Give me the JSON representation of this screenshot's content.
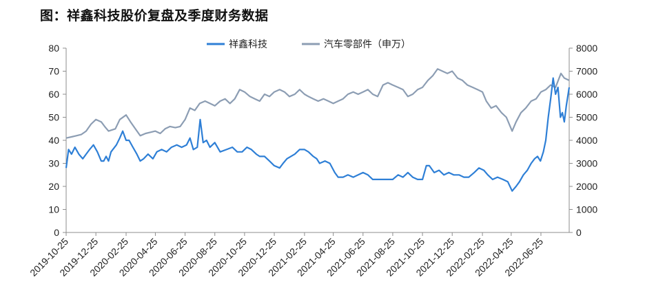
{
  "title": "图：祥鑫科技股价复盘及季度财务数据",
  "chart_data": {
    "type": "line",
    "title": "图：祥鑫科技股价复盘及季度财务数据",
    "xlabel": "",
    "ylabel": "",
    "y2label": "",
    "ylim": [
      0,
      80
    ],
    "y2lim": [
      0,
      8000
    ],
    "yticks": [
      0,
      10,
      20,
      30,
      40,
      50,
      60,
      70,
      80
    ],
    "y2ticks": [
      0,
      1000,
      2000,
      3000,
      4000,
      5000,
      6000,
      7000,
      8000
    ],
    "x_start": "2019-10-25",
    "x_end": "2022-08-22",
    "xticks": [
      "2019-10-25",
      "2019-12-25",
      "2020-02-25",
      "2020-04-25",
      "2020-06-25",
      "2020-08-25",
      "2020-10-25",
      "2020-12-25",
      "2021-02-25",
      "2021-04-25",
      "2021-06-25",
      "2021-08-25",
      "2021-10-25",
      "2021-12-25",
      "2022-02-25",
      "2022-04-25",
      "2022-06-25"
    ],
    "legend_position": "top-center",
    "series": [
      {
        "name": "祥鑫科技",
        "axis": "left",
        "color": "#2e7fd6",
        "points": [
          [
            "2019-10-25",
            28
          ],
          [
            "2019-10-30",
            36
          ],
          [
            "2019-11-05",
            34
          ],
          [
            "2019-11-12",
            37
          ],
          [
            "2019-11-20",
            34
          ],
          [
            "2019-11-28",
            32
          ],
          [
            "2019-12-05",
            34
          ],
          [
            "2019-12-12",
            36
          ],
          [
            "2019-12-20",
            38
          ],
          [
            "2019-12-28",
            35
          ],
          [
            "2020-01-05",
            31
          ],
          [
            "2020-01-10",
            31
          ],
          [
            "2020-01-15",
            33
          ],
          [
            "2020-01-20",
            31
          ],
          [
            "2020-01-25",
            35
          ],
          [
            "2020-02-05",
            38
          ],
          [
            "2020-02-12",
            41
          ],
          [
            "2020-02-18",
            44
          ],
          [
            "2020-02-25",
            40
          ],
          [
            "2020-03-02",
            40
          ],
          [
            "2020-03-10",
            37
          ],
          [
            "2020-03-18",
            34
          ],
          [
            "2020-03-25",
            31
          ],
          [
            "2020-04-01",
            32
          ],
          [
            "2020-04-10",
            34
          ],
          [
            "2020-04-20",
            32
          ],
          [
            "2020-04-28",
            35
          ],
          [
            "2020-05-08",
            36
          ],
          [
            "2020-05-18",
            35
          ],
          [
            "2020-05-28",
            37
          ],
          [
            "2020-06-08",
            38
          ],
          [
            "2020-06-18",
            37
          ],
          [
            "2020-06-28",
            38
          ],
          [
            "2020-07-05",
            41
          ],
          [
            "2020-07-12",
            36
          ],
          [
            "2020-07-20",
            37
          ],
          [
            "2020-07-26",
            49
          ],
          [
            "2020-08-01",
            39
          ],
          [
            "2020-08-08",
            40
          ],
          [
            "2020-08-15",
            37
          ],
          [
            "2020-08-25",
            39
          ],
          [
            "2020-09-05",
            35
          ],
          [
            "2020-09-18",
            36
          ],
          [
            "2020-09-30",
            37
          ],
          [
            "2020-10-10",
            35
          ],
          [
            "2020-10-20",
            35
          ],
          [
            "2020-10-30",
            37
          ],
          [
            "2020-11-08",
            36
          ],
          [
            "2020-11-18",
            34
          ],
          [
            "2020-11-25",
            33
          ],
          [
            "2020-12-05",
            33
          ],
          [
            "2020-12-15",
            31
          ],
          [
            "2020-12-25",
            29
          ],
          [
            "2021-01-05",
            28
          ],
          [
            "2021-01-12",
            30
          ],
          [
            "2021-01-20",
            32
          ],
          [
            "2021-01-28",
            33
          ],
          [
            "2021-02-05",
            34
          ],
          [
            "2021-02-15",
            36
          ],
          [
            "2021-02-25",
            36
          ],
          [
            "2021-03-05",
            35
          ],
          [
            "2021-03-15",
            33
          ],
          [
            "2021-03-22",
            32
          ],
          [
            "2021-03-28",
            30
          ],
          [
            "2021-04-08",
            31
          ],
          [
            "2021-04-18",
            30
          ],
          [
            "2021-04-28",
            26
          ],
          [
            "2021-05-05",
            24
          ],
          [
            "2021-05-15",
            24
          ],
          [
            "2021-05-25",
            25
          ],
          [
            "2021-06-05",
            24
          ],
          [
            "2021-06-15",
            25
          ],
          [
            "2021-06-25",
            26
          ],
          [
            "2021-07-05",
            25
          ],
          [
            "2021-07-15",
            23
          ],
          [
            "2021-07-25",
            23
          ],
          [
            "2021-08-05",
            23
          ],
          [
            "2021-08-15",
            23
          ],
          [
            "2021-08-25",
            23
          ],
          [
            "2021-09-05",
            25
          ],
          [
            "2021-09-15",
            24
          ],
          [
            "2021-09-25",
            26
          ],
          [
            "2021-10-05",
            24
          ],
          [
            "2021-10-15",
            23
          ],
          [
            "2021-10-25",
            23
          ],
          [
            "2021-11-02",
            29
          ],
          [
            "2021-11-08",
            29
          ],
          [
            "2021-11-18",
            26
          ],
          [
            "2021-11-28",
            27
          ],
          [
            "2021-12-08",
            25
          ],
          [
            "2021-12-18",
            26
          ],
          [
            "2021-12-28",
            25
          ],
          [
            "2022-01-08",
            25
          ],
          [
            "2022-01-18",
            24
          ],
          [
            "2022-01-28",
            24
          ],
          [
            "2022-02-08",
            26
          ],
          [
            "2022-02-18",
            28
          ],
          [
            "2022-02-28",
            27
          ],
          [
            "2022-03-08",
            25
          ],
          [
            "2022-03-18",
            23
          ],
          [
            "2022-03-28",
            24
          ],
          [
            "2022-04-08",
            23
          ],
          [
            "2022-04-18",
            22
          ],
          [
            "2022-04-27",
            18
          ],
          [
            "2022-05-05",
            20
          ],
          [
            "2022-05-12",
            22
          ],
          [
            "2022-05-20",
            25
          ],
          [
            "2022-05-28",
            27
          ],
          [
            "2022-06-05",
            30
          ],
          [
            "2022-06-12",
            32
          ],
          [
            "2022-06-18",
            33
          ],
          [
            "2022-06-24",
            31
          ],
          [
            "2022-06-30",
            35
          ],
          [
            "2022-07-05",
            40
          ],
          [
            "2022-07-10",
            50
          ],
          [
            "2022-07-15",
            58
          ],
          [
            "2022-07-20",
            67
          ],
          [
            "2022-07-25",
            60
          ],
          [
            "2022-07-30",
            63
          ],
          [
            "2022-08-04",
            50
          ],
          [
            "2022-08-08",
            52
          ],
          [
            "2022-08-12",
            48
          ],
          [
            "2022-08-16",
            55
          ],
          [
            "2022-08-22",
            63
          ]
        ]
      },
      {
        "name": "汽车零部件（申万）",
        "axis": "right",
        "color": "#8c9db3",
        "points": [
          [
            "2019-10-25",
            4100
          ],
          [
            "2019-11-05",
            4150
          ],
          [
            "2019-11-15",
            4200
          ],
          [
            "2019-11-25",
            4250
          ],
          [
            "2019-12-05",
            4400
          ],
          [
            "2019-12-15",
            4700
          ],
          [
            "2019-12-25",
            4900
          ],
          [
            "2020-01-05",
            4800
          ],
          [
            "2020-01-12",
            4600
          ],
          [
            "2020-01-20",
            4400
          ],
          [
            "2020-02-03",
            4500
          ],
          [
            "2020-02-12",
            4900
          ],
          [
            "2020-02-25",
            5100
          ],
          [
            "2020-03-05",
            4800
          ],
          [
            "2020-03-15",
            4500
          ],
          [
            "2020-03-25",
            4200
          ],
          [
            "2020-04-05",
            4300
          ],
          [
            "2020-04-15",
            4350
          ],
          [
            "2020-04-25",
            4400
          ],
          [
            "2020-05-05",
            4300
          ],
          [
            "2020-05-15",
            4500
          ],
          [
            "2020-05-25",
            4600
          ],
          [
            "2020-06-05",
            4550
          ],
          [
            "2020-06-15",
            4600
          ],
          [
            "2020-06-25",
            4900
          ],
          [
            "2020-07-05",
            5400
          ],
          [
            "2020-07-15",
            5300
          ],
          [
            "2020-07-25",
            5600
          ],
          [
            "2020-08-05",
            5700
          ],
          [
            "2020-08-15",
            5600
          ],
          [
            "2020-08-25",
            5500
          ],
          [
            "2020-09-05",
            5700
          ],
          [
            "2020-09-15",
            5800
          ],
          [
            "2020-09-25",
            5600
          ],
          [
            "2020-10-05",
            5800
          ],
          [
            "2020-10-15",
            6200
          ],
          [
            "2020-10-25",
            6100
          ],
          [
            "2020-11-05",
            5900
          ],
          [
            "2020-11-15",
            5800
          ],
          [
            "2020-11-25",
            5700
          ],
          [
            "2020-12-05",
            6000
          ],
          [
            "2020-12-15",
            5900
          ],
          [
            "2020-12-25",
            6100
          ],
          [
            "2021-01-05",
            6200
          ],
          [
            "2021-01-15",
            6100
          ],
          [
            "2021-01-25",
            5900
          ],
          [
            "2021-02-05",
            6000
          ],
          [
            "2021-02-15",
            6200
          ],
          [
            "2021-02-25",
            6000
          ],
          [
            "2021-03-05",
            5900
          ],
          [
            "2021-03-15",
            5800
          ],
          [
            "2021-03-25",
            5700
          ],
          [
            "2021-04-05",
            5800
          ],
          [
            "2021-04-15",
            5700
          ],
          [
            "2021-04-25",
            5600
          ],
          [
            "2021-05-05",
            5700
          ],
          [
            "2021-05-15",
            5800
          ],
          [
            "2021-05-25",
            6000
          ],
          [
            "2021-06-05",
            6100
          ],
          [
            "2021-06-15",
            6000
          ],
          [
            "2021-06-25",
            6100
          ],
          [
            "2021-07-05",
            6200
          ],
          [
            "2021-07-15",
            6000
          ],
          [
            "2021-07-25",
            5900
          ],
          [
            "2021-08-05",
            6400
          ],
          [
            "2021-08-15",
            6500
          ],
          [
            "2021-08-25",
            6400
          ],
          [
            "2021-09-05",
            6300
          ],
          [
            "2021-09-15",
            6200
          ],
          [
            "2021-09-25",
            5900
          ],
          [
            "2021-10-05",
            6000
          ],
          [
            "2021-10-15",
            6200
          ],
          [
            "2021-10-25",
            6300
          ],
          [
            "2021-11-05",
            6600
          ],
          [
            "2021-11-15",
            6800
          ],
          [
            "2021-11-25",
            7100
          ],
          [
            "2021-12-05",
            7000
          ],
          [
            "2021-12-15",
            6900
          ],
          [
            "2021-12-25",
            7000
          ],
          [
            "2022-01-05",
            6700
          ],
          [
            "2022-01-15",
            6600
          ],
          [
            "2022-01-25",
            6400
          ],
          [
            "2022-02-05",
            6300
          ],
          [
            "2022-02-15",
            6200
          ],
          [
            "2022-02-25",
            6100
          ],
          [
            "2022-03-05",
            5700
          ],
          [
            "2022-03-15",
            5400
          ],
          [
            "2022-03-25",
            5500
          ],
          [
            "2022-04-05",
            5200
          ],
          [
            "2022-04-15",
            5000
          ],
          [
            "2022-04-27",
            4400
          ],
          [
            "2022-05-05",
            4800
          ],
          [
            "2022-05-15",
            5200
          ],
          [
            "2022-05-25",
            5400
          ],
          [
            "2022-06-05",
            5700
          ],
          [
            "2022-06-15",
            5800
          ],
          [
            "2022-06-25",
            6100
          ],
          [
            "2022-07-05",
            6200
          ],
          [
            "2022-07-15",
            6400
          ],
          [
            "2022-07-25",
            6300
          ],
          [
            "2022-08-05",
            6900
          ],
          [
            "2022-08-12",
            6700
          ],
          [
            "2022-08-22",
            6600
          ]
        ]
      }
    ]
  }
}
